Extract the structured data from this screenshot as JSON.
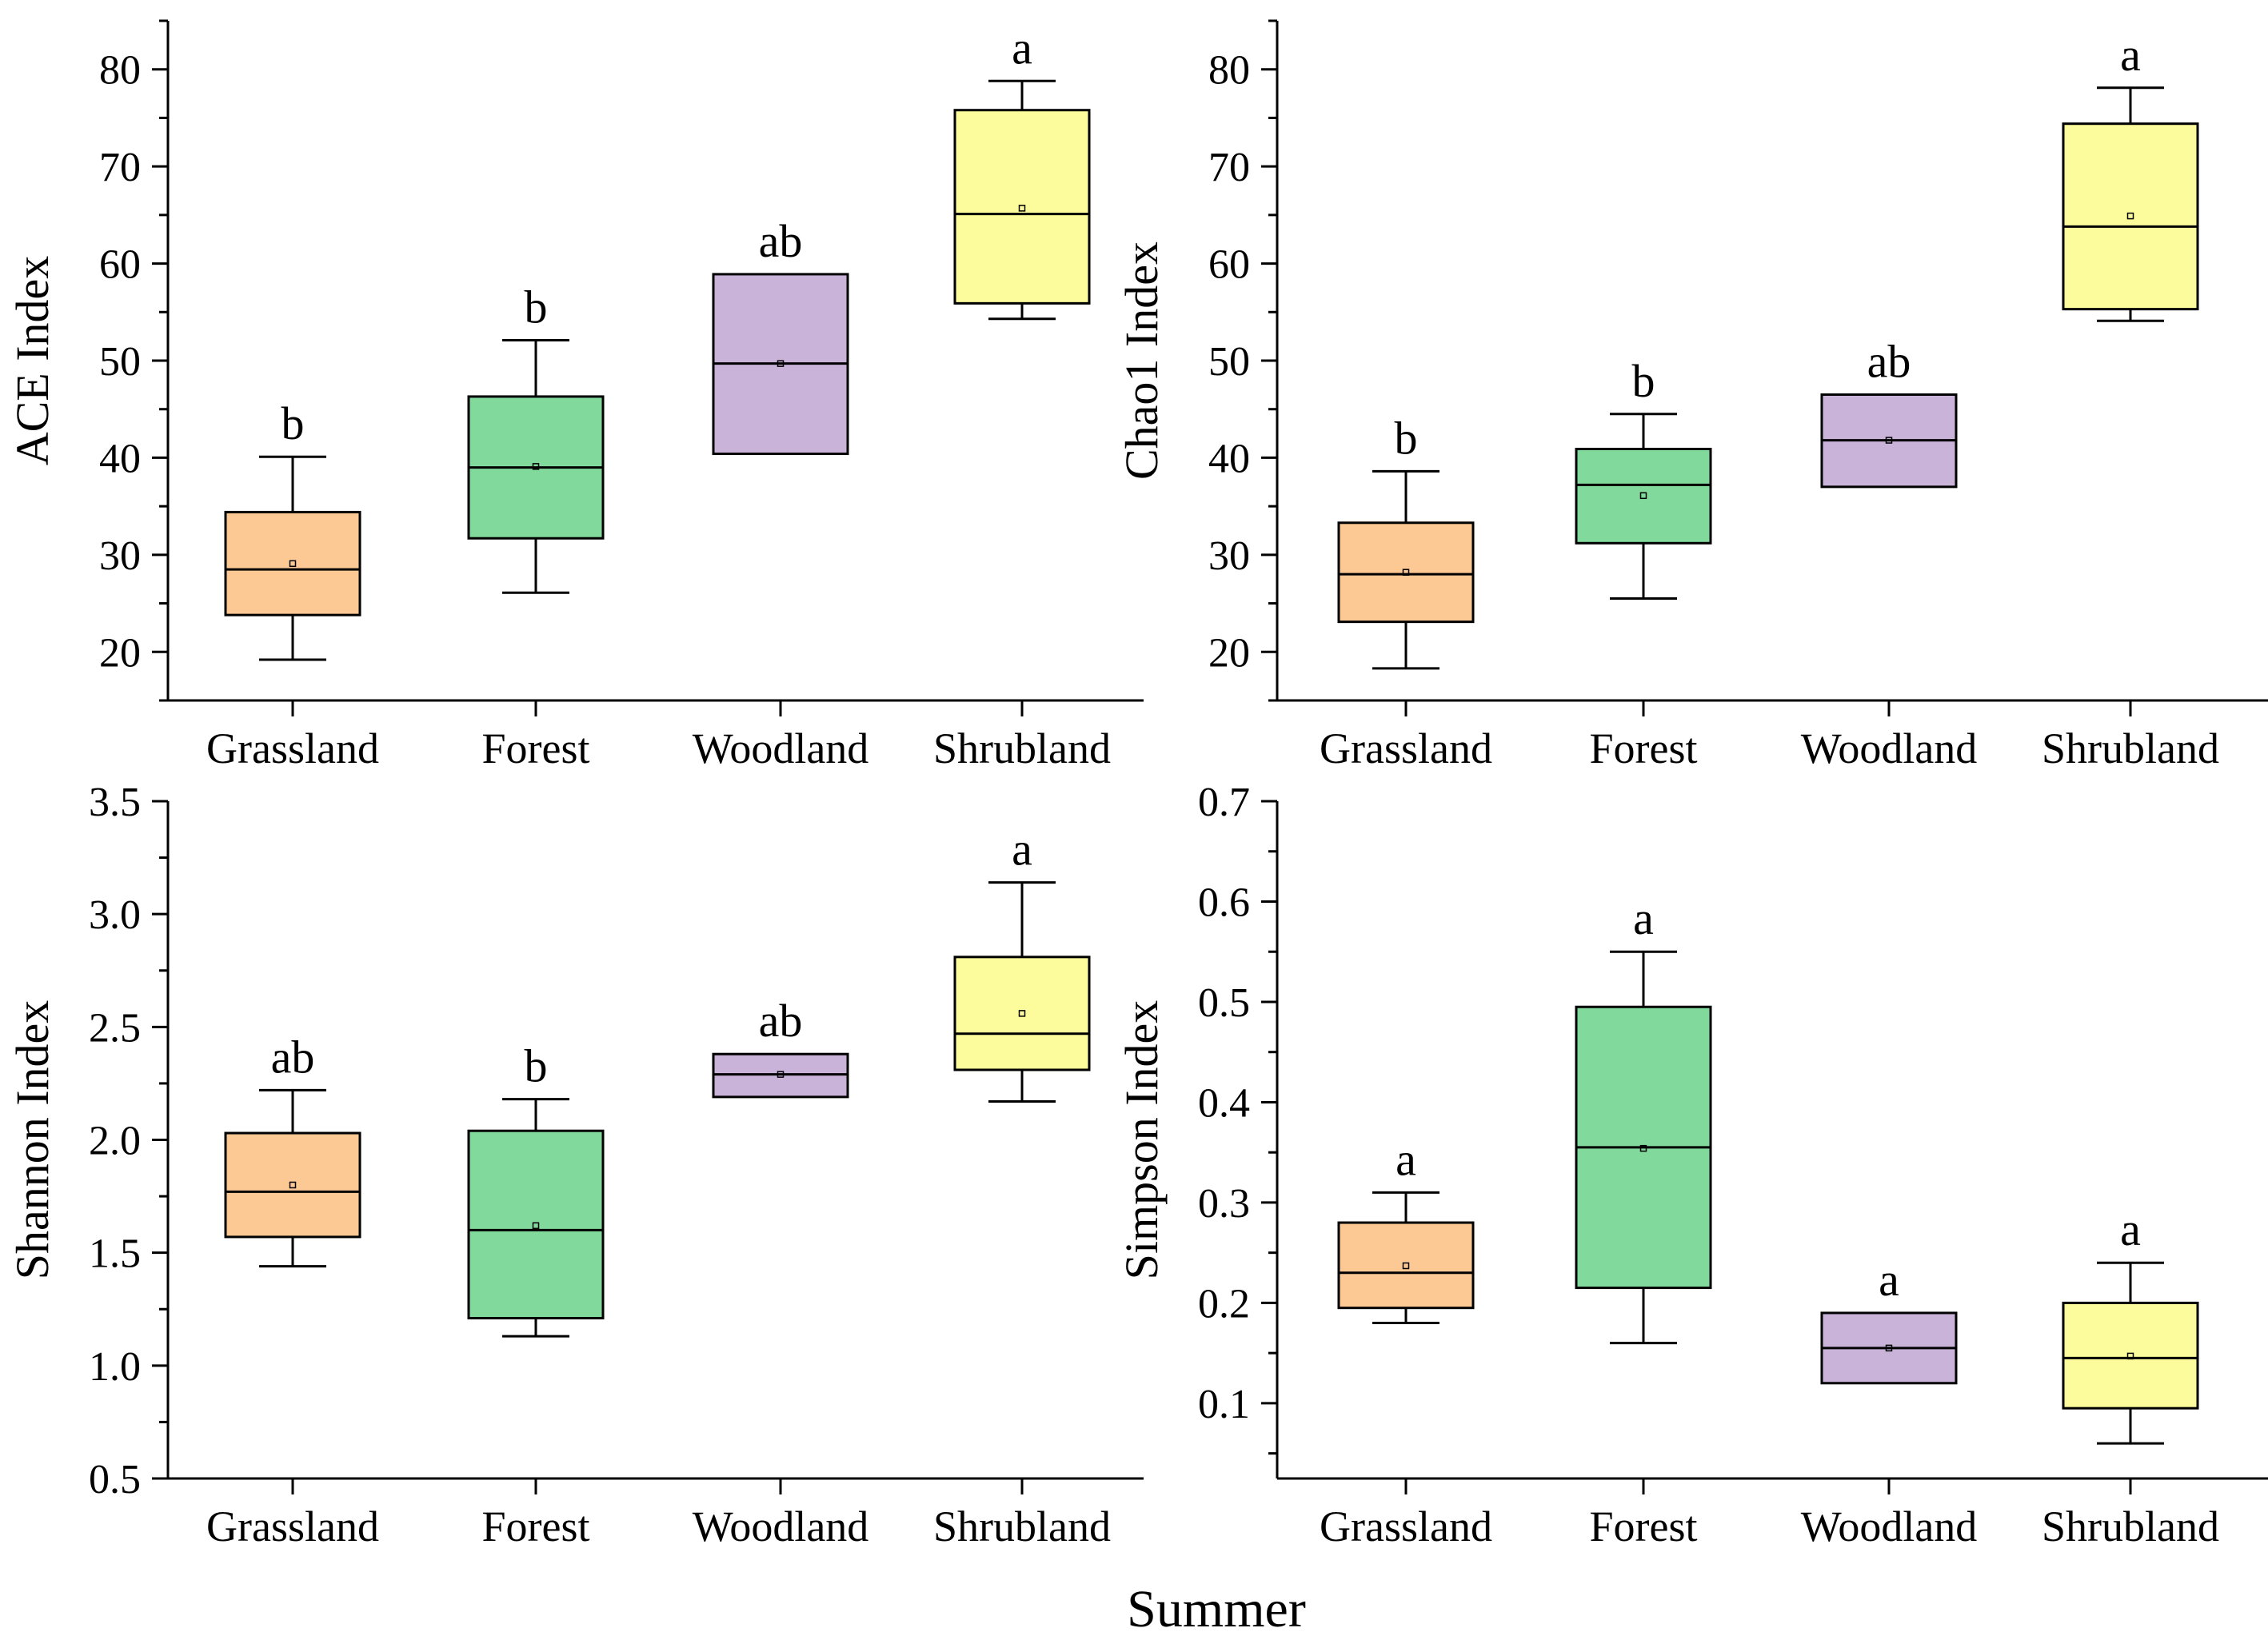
{
  "figure": {
    "xlabel": "Summer"
  },
  "colors": {
    "Grassland": "#FCC995",
    "Forest": "#82D99C",
    "Woodland": "#C9B3D9",
    "Shrubland": "#FCFC9C",
    "stroke": "#000000"
  },
  "chart_data": [
    {
      "id": "ace",
      "type": "boxplot",
      "ylabel": "ACE Index",
      "ylim": [
        15,
        85
      ],
      "yticks": [
        "20",
        "30",
        "40",
        "50",
        "60",
        "70",
        "80"
      ],
      "categories": [
        "Grassland",
        "Forest",
        "Woodland",
        "Shrubland"
      ],
      "boxes": [
        {
          "category": "Grassland",
          "whisker_low": 19.2,
          "q1": 23.8,
          "median": 28.5,
          "q3": 34.4,
          "whisker_high": 40.1,
          "mean": 29.1,
          "letter": "b"
        },
        {
          "category": "Forest",
          "whisker_low": 26.1,
          "q1": 31.7,
          "median": 39.0,
          "q3": 46.3,
          "whisker_high": 52.1,
          "mean": 39.1,
          "letter": "b"
        },
        {
          "category": "Woodland",
          "whisker_low": 40.4,
          "q1": 40.4,
          "median": 49.7,
          "q3": 58.9,
          "whisker_high": 58.9,
          "mean": 49.7,
          "letter": "ab"
        },
        {
          "category": "Shrubland",
          "whisker_low": 54.3,
          "q1": 55.9,
          "median": 65.1,
          "q3": 75.8,
          "whisker_high": 78.8,
          "mean": 65.7,
          "letter": "a"
        }
      ]
    },
    {
      "id": "chao1",
      "type": "boxplot",
      "ylabel": "Chao1 Index",
      "ylim": [
        15,
        85
      ],
      "yticks": [
        "20",
        "30",
        "40",
        "50",
        "60",
        "70",
        "80"
      ],
      "categories": [
        "Grassland",
        "Forest",
        "Woodland",
        "Shrubland"
      ],
      "boxes": [
        {
          "category": "Grassland",
          "whisker_low": 18.3,
          "q1": 23.1,
          "median": 28.0,
          "q3": 33.3,
          "whisker_high": 38.6,
          "mean": 28.2,
          "letter": "b"
        },
        {
          "category": "Forest",
          "whisker_low": 25.5,
          "q1": 31.2,
          "median": 37.2,
          "q3": 40.9,
          "whisker_high": 44.5,
          "mean": 36.1,
          "letter": "b"
        },
        {
          "category": "Woodland",
          "whisker_low": 37.0,
          "q1": 37.0,
          "median": 41.8,
          "q3": 46.5,
          "whisker_high": 46.5,
          "mean": 41.8,
          "letter": "ab"
        },
        {
          "category": "Shrubland",
          "whisker_low": 54.1,
          "q1": 55.3,
          "median": 63.8,
          "q3": 74.4,
          "whisker_high": 78.1,
          "mean": 64.9,
          "letter": "a"
        }
      ]
    },
    {
      "id": "shannon",
      "type": "boxplot",
      "ylabel": "Shannon Index",
      "ylim": [
        0.5,
        3.5
      ],
      "yticks": [
        "0.5",
        "1.0",
        "1.5",
        "2.0",
        "2.5",
        "3.0",
        "3.5"
      ],
      "categories": [
        "Grassland",
        "Forest",
        "Woodland",
        "Shrubland"
      ],
      "boxes": [
        {
          "category": "Grassland",
          "whisker_low": 1.44,
          "q1": 1.57,
          "median": 1.77,
          "q3": 2.03,
          "whisker_high": 2.22,
          "mean": 1.8,
          "letter": "ab"
        },
        {
          "category": "Forest",
          "whisker_low": 1.13,
          "q1": 1.21,
          "median": 1.6,
          "q3": 2.04,
          "whisker_high": 2.18,
          "mean": 1.62,
          "letter": "b"
        },
        {
          "category": "Woodland",
          "whisker_low": 2.19,
          "q1": 2.19,
          "median": 2.29,
          "q3": 2.38,
          "whisker_high": 2.38,
          "mean": 2.29,
          "letter": "ab"
        },
        {
          "category": "Shrubland",
          "whisker_low": 2.17,
          "q1": 2.31,
          "median": 2.47,
          "q3": 2.81,
          "whisker_high": 3.14,
          "mean": 2.56,
          "letter": "a"
        }
      ]
    },
    {
      "id": "simpson",
      "type": "boxplot",
      "ylabel": "Simpson Index",
      "ylim": [
        0.025,
        0.7
      ],
      "yticks": [
        "0.1",
        "0.2",
        "0.3",
        "0.4",
        "0.5",
        "0.6",
        "0.7"
      ],
      "categories": [
        "Grassland",
        "Forest",
        "Woodland",
        "Shrubland"
      ],
      "boxes": [
        {
          "category": "Grassland",
          "whisker_low": 0.18,
          "q1": 0.195,
          "median": 0.23,
          "q3": 0.28,
          "whisker_high": 0.31,
          "mean": 0.237,
          "letter": "a"
        },
        {
          "category": "Forest",
          "whisker_low": 0.16,
          "q1": 0.215,
          "median": 0.355,
          "q3": 0.495,
          "whisker_high": 0.55,
          "mean": 0.354,
          "letter": "a"
        },
        {
          "category": "Woodland",
          "whisker_low": 0.12,
          "q1": 0.12,
          "median": 0.155,
          "q3": 0.19,
          "whisker_high": 0.19,
          "mean": 0.155,
          "letter": "a"
        },
        {
          "category": "Shrubland",
          "whisker_low": 0.06,
          "q1": 0.095,
          "median": 0.145,
          "q3": 0.2,
          "whisker_high": 0.24,
          "mean": 0.147,
          "letter": "a"
        }
      ]
    }
  ]
}
